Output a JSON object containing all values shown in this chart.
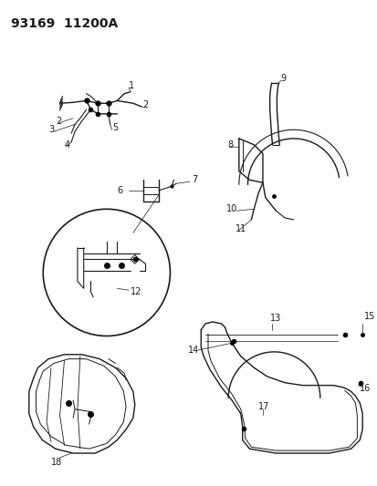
{
  "title": "93169  11200A",
  "background_color": "#ffffff",
  "line_color": "#1a1a1a",
  "figsize": [
    4.14,
    5.33
  ],
  "dpi": 100
}
